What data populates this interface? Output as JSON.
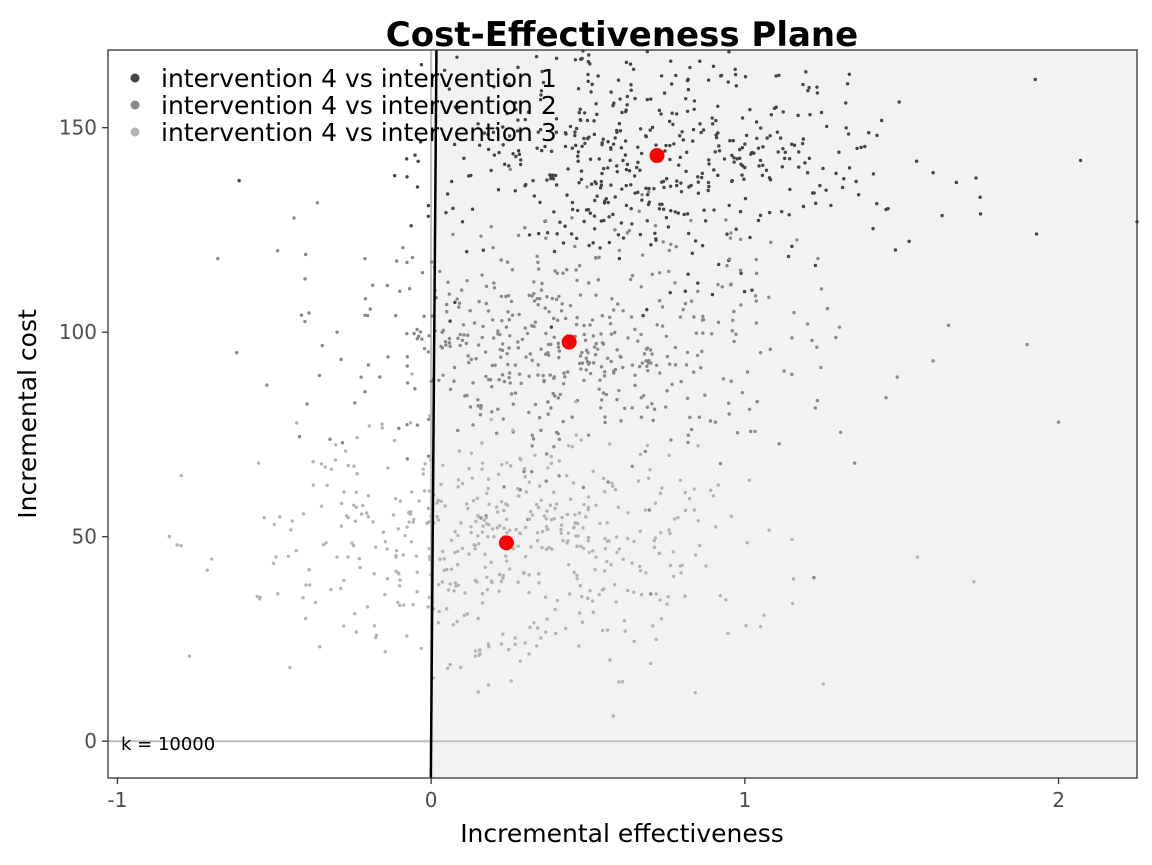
{
  "chart_data": {
    "type": "scatter",
    "title": "Cost-Effectiveness Plane",
    "xlabel": "Incremental effectiveness",
    "ylabel": "Incremental cost",
    "xlim": [
      -1.03,
      2.25
    ],
    "ylim": [
      -9,
      169
    ],
    "x_ticks": [
      -1,
      0,
      1,
      2
    ],
    "y_ticks": [
      0,
      50,
      100,
      150
    ],
    "x_tick_labels": [
      "-1",
      "0",
      "1",
      "2"
    ],
    "y_tick_labels": [
      "0",
      "50",
      "100",
      "150"
    ],
    "grid": false,
    "legend_position": "top-left",
    "willingness_to_pay": {
      "label": "k = 10000",
      "k": 10000,
      "slope": 10000
    },
    "colors": {
      "series": [
        "#444444",
        "#888888",
        "#b3b3b3"
      ],
      "mean_point": "#ff0000",
      "ce_region": "#f2f2f2",
      "reference_lines": "#bdbdbd",
      "wtp_line": "#000000"
    },
    "series": [
      {
        "name": "intervention 4 vs intervention 1",
        "mean": {
          "x": 0.72,
          "y": 143.2
        },
        "sd": {
          "x": 0.34,
          "y": 15
        },
        "sample_points": [
          [
            0.2,
            160
          ],
          [
            0.25,
            148
          ],
          [
            0.3,
            152
          ],
          [
            0.35,
            158
          ],
          [
            0.4,
            136
          ],
          [
            0.45,
            145
          ],
          [
            0.5,
            163
          ],
          [
            0.55,
            140
          ],
          [
            0.6,
            151
          ],
          [
            0.65,
            134
          ],
          [
            0.7,
            157
          ],
          [
            0.75,
            128
          ],
          [
            0.8,
            149
          ],
          [
            0.85,
            138
          ],
          [
            0.9,
            165
          ],
          [
            0.95,
            131
          ],
          [
            1.0,
            146
          ],
          [
            1.05,
            142
          ],
          [
            1.1,
            155
          ],
          [
            1.15,
            121
          ],
          [
            1.2,
            139
          ],
          [
            1.3,
            144
          ],
          [
            1.45,
            130
          ],
          [
            1.6,
            139
          ],
          [
            1.75,
            133
          ],
          [
            1.93,
            124
          ],
          [
            2.07,
            142
          ],
          [
            2.25,
            127
          ],
          [
            0.1,
            127
          ],
          [
            0.6,
            118
          ],
          [
            0.85,
            112
          ]
        ]
      },
      {
        "name": "intervention 4 vs intervention 2",
        "mean": {
          "x": 0.44,
          "y": 97.6
        },
        "sd": {
          "x": 0.36,
          "y": 15
        },
        "sample_points": [
          [
            -0.68,
            118
          ],
          [
            -0.62,
            95
          ],
          [
            -0.4,
            119
          ],
          [
            -0.3,
            100
          ],
          [
            -0.2,
            92
          ],
          [
            -0.1,
            110
          ],
          [
            0.0,
            88
          ],
          [
            0.05,
            105
          ],
          [
            0.1,
            98
          ],
          [
            0.15,
            82
          ],
          [
            0.2,
            112
          ],
          [
            0.25,
            90
          ],
          [
            0.3,
            101
          ],
          [
            0.35,
            76
          ],
          [
            0.4,
            108
          ],
          [
            0.5,
            95
          ],
          [
            0.6,
            120
          ],
          [
            0.65,
            87
          ],
          [
            0.75,
            99
          ],
          [
            0.85,
            110
          ],
          [
            0.95,
            80
          ],
          [
            1.05,
            95
          ],
          [
            1.2,
            102
          ],
          [
            1.35,
            68
          ],
          [
            1.45,
            84
          ],
          [
            1.6,
            93
          ],
          [
            1.9,
            97
          ],
          [
            2.0,
            78
          ],
          [
            1.22,
            40
          ],
          [
            0.7,
            36
          ]
        ]
      },
      {
        "name": "intervention 4 vs intervention 3",
        "mean": {
          "x": 0.24,
          "y": 48.5
        },
        "sd": {
          "x": 0.38,
          "y": 14
        },
        "sample_points": [
          [
            -0.55,
            68
          ],
          [
            -0.5,
            53
          ],
          [
            -0.45,
            18
          ],
          [
            -0.4,
            30
          ],
          [
            -0.3,
            45
          ],
          [
            -0.2,
            60
          ],
          [
            -0.1,
            38
          ],
          [
            0.0,
            55
          ],
          [
            0.05,
            42
          ],
          [
            0.1,
            63
          ],
          [
            0.15,
            30
          ],
          [
            0.2,
            50
          ],
          [
            0.3,
            24
          ],
          [
            0.4,
            58
          ],
          [
            0.5,
            35
          ],
          [
            0.6,
            47
          ],
          [
            0.7,
            19
          ],
          [
            0.8,
            43
          ],
          [
            0.9,
            60
          ],
          [
            1.05,
            28
          ],
          [
            1.25,
            14
          ],
          [
            1.55,
            45
          ],
          [
            1.73,
            39
          ],
          [
            0.45,
            72
          ],
          [
            0.15,
            12
          ]
        ]
      }
    ]
  }
}
